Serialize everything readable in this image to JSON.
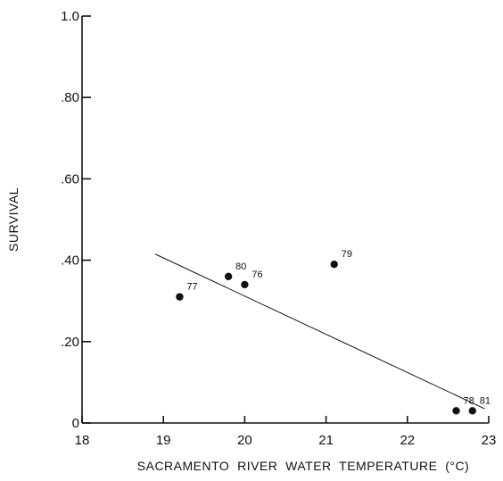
{
  "chart_data": {
    "type": "scatter",
    "title": "",
    "xlabel": "SACRAMENTO  RIVER  WATER  TEMPERATURE  (°C)",
    "ylabel": "SURVIVAL",
    "xlim": [
      18,
      23
    ],
    "ylim": [
      0,
      1.0
    ],
    "grid": false,
    "legend": "none",
    "x_ticks": [
      {
        "value": 18,
        "label": "18"
      },
      {
        "value": 19,
        "label": "19"
      },
      {
        "value": 20,
        "label": "20"
      },
      {
        "value": 21,
        "label": "21"
      },
      {
        "value": 22,
        "label": "22"
      },
      {
        "value": 23,
        "label": "23"
      }
    ],
    "y_ticks": [
      {
        "value": 0,
        "label": "0"
      },
      {
        "value": 0.2,
        "label": ".20"
      },
      {
        "value": 0.4,
        "label": ".40"
      },
      {
        "value": 0.6,
        "label": ".60"
      },
      {
        "value": 0.8,
        "label": ".80"
      },
      {
        "value": 1.0,
        "label": "1.0"
      }
    ],
    "points": [
      {
        "x": 19.2,
        "y": 0.31,
        "label": "77"
      },
      {
        "x": 19.8,
        "y": 0.36,
        "label": "80"
      },
      {
        "x": 20.0,
        "y": 0.34,
        "label": "76"
      },
      {
        "x": 21.1,
        "y": 0.39,
        "label": "79"
      },
      {
        "x": 22.6,
        "y": 0.03,
        "label": "78"
      },
      {
        "x": 22.8,
        "y": 0.03,
        "label": "81"
      }
    ],
    "regression_line": {
      "x": [
        18.9,
        22.95
      ],
      "y": [
        0.415,
        0.035
      ]
    },
    "colors": {
      "ink": "#111111",
      "background": "#ffffff"
    }
  }
}
